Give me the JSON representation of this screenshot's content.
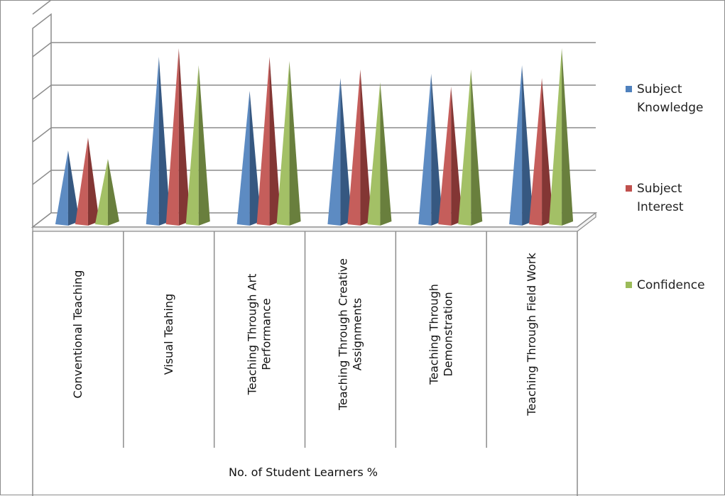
{
  "chart_data": {
    "type": "bar",
    "subtype": "3d-pyramid",
    "categories": [
      [
        "Conventional Teaching"
      ],
      [
        "Visual Teahing"
      ],
      [
        "Teaching Through Art",
        "Performance"
      ],
      [
        "Teaching Through Creative",
        "Assignments"
      ],
      [
        "Teaching Through",
        "Demonstration"
      ],
      [
        "Teaching Through Field Work"
      ]
    ],
    "series": [
      {
        "name": "Subject Knowledge",
        "legend_lines": [
          "Subject",
          "Knowledge"
        ],
        "color": "#4f81bd",
        "values": [
          18,
          40,
          32,
          35,
          36,
          38
        ]
      },
      {
        "name": "Subject Interest",
        "legend_lines": [
          "Subject",
          "Interest"
        ],
        "color": "#c0504d",
        "values": [
          21,
          42,
          40,
          37,
          33,
          35
        ]
      },
      {
        "name": "Confidence",
        "legend_lines": [
          "Confidence"
        ],
        "color": "#9bbb59",
        "values": [
          16,
          38,
          39,
          34,
          37,
          42
        ]
      }
    ],
    "xlabel": "No. of Student Learners %",
    "ylim": [
      0,
      50
    ],
    "gridlines": 5,
    "grid": true,
    "y_tick_labels_visible": false,
    "legend_position": "right"
  }
}
